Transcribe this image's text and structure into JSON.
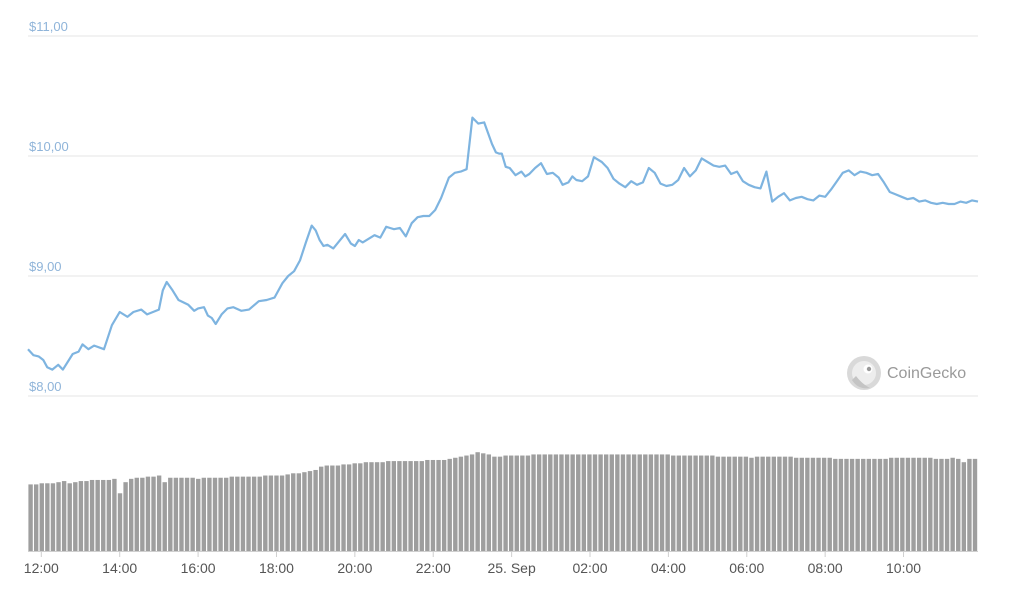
{
  "chart_data": {
    "type": "line",
    "title": "",
    "y_axis": {
      "ticks": [
        {
          "value": 8,
          "label": "$8,00"
        },
        {
          "value": 9,
          "label": "$9,00"
        },
        {
          "value": 10,
          "label": "$10,00"
        },
        {
          "value": 11,
          "label": "$11,00"
        }
      ],
      "range": [
        7.95,
        11.05
      ]
    },
    "x_axis": {
      "ticks": [
        {
          "hour": 12,
          "label": "12:00"
        },
        {
          "hour": 14,
          "label": "14:00"
        },
        {
          "hour": 16,
          "label": "16:00"
        },
        {
          "hour": 18,
          "label": "18:00"
        },
        {
          "hour": 20,
          "label": "20:00"
        },
        {
          "hour": 22,
          "label": "22:00"
        },
        {
          "hour": 24,
          "label": "25. Sep"
        },
        {
          "hour": 26,
          "label": "02:00"
        },
        {
          "hour": 28,
          "label": "04:00"
        },
        {
          "hour": 30,
          "label": "06:00"
        },
        {
          "hour": 32,
          "label": "08:00"
        },
        {
          "hour": 34,
          "label": "10:00"
        }
      ],
      "range": [
        11.66,
        35.9
      ]
    },
    "price_series": {
      "color": "#7eb4e0",
      "hours": [
        11.66,
        11.8,
        11.93,
        12.05,
        12.15,
        12.28,
        12.43,
        12.55,
        12.8,
        12.95,
        13.05,
        13.2,
        13.35,
        13.6,
        13.8,
        14.0,
        14.2,
        14.35,
        14.55,
        14.7,
        14.85,
        15.0,
        15.1,
        15.2,
        15.35,
        15.5,
        15.75,
        15.9,
        16.0,
        16.15,
        16.25,
        16.35,
        16.45,
        16.6,
        16.75,
        16.9,
        17.1,
        17.3,
        17.55,
        17.75,
        17.95,
        18.15,
        18.3,
        18.45,
        18.6,
        18.75,
        18.9,
        19.0,
        19.1,
        19.2,
        19.3,
        19.45,
        19.6,
        19.75,
        19.9,
        20.0,
        20.1,
        20.2,
        20.35,
        20.5,
        20.65,
        20.8,
        20.9,
        21.0,
        21.15,
        21.3,
        21.45,
        21.6,
        21.75,
        21.9,
        22.05,
        22.2,
        22.4,
        22.55,
        22.7,
        22.85,
        23.0,
        23.15,
        23.3,
        23.5,
        23.6,
        23.68,
        23.75,
        23.85,
        23.95,
        24.1,
        24.25,
        24.35,
        24.45,
        24.6,
        24.75,
        24.9,
        25.05,
        25.2,
        25.3,
        25.45,
        25.55,
        25.65,
        25.8,
        25.95,
        26.1,
        26.3,
        26.45,
        26.6,
        26.75,
        26.9,
        27.05,
        27.2,
        27.35,
        27.5,
        27.65,
        27.8,
        27.95,
        28.1,
        28.25,
        28.4,
        28.55,
        28.7,
        28.85,
        29.0,
        29.15,
        29.3,
        29.45,
        29.6,
        29.75,
        29.9,
        30.05,
        30.2,
        30.35,
        30.5,
        30.65,
        30.8,
        30.95,
        31.1,
        31.25,
        31.4,
        31.55,
        31.7,
        31.85,
        32.0,
        32.15,
        32.3,
        32.45,
        32.6,
        32.75,
        32.9,
        33.05,
        33.2,
        33.35,
        33.5,
        33.65,
        33.8,
        33.95,
        34.1,
        34.25,
        34.4,
        34.55,
        34.7,
        34.85,
        35.0,
        35.15,
        35.3,
        35.45,
        35.6,
        35.75,
        35.9
      ],
      "prices": [
        8.39,
        8.34,
        8.33,
        8.3,
        8.24,
        8.22,
        8.26,
        8.22,
        8.35,
        8.37,
        8.43,
        8.39,
        8.42,
        8.39,
        8.59,
        8.7,
        8.66,
        8.7,
        8.72,
        8.68,
        8.7,
        8.72,
        8.88,
        8.95,
        8.88,
        8.8,
        8.76,
        8.71,
        8.73,
        8.74,
        8.67,
        8.65,
        8.6,
        8.68,
        8.73,
        8.74,
        8.71,
        8.72,
        8.79,
        8.8,
        8.82,
        8.94,
        9.0,
        9.04,
        9.13,
        9.28,
        9.42,
        9.38,
        9.3,
        9.25,
        9.26,
        9.23,
        9.29,
        9.35,
        9.27,
        9.25,
        9.3,
        9.28,
        9.31,
        9.34,
        9.32,
        9.41,
        9.4,
        9.39,
        9.4,
        9.33,
        9.44,
        9.49,
        9.5,
        9.5,
        9.55,
        9.65,
        9.82,
        9.86,
        9.87,
        9.89,
        10.32,
        10.27,
        10.28,
        10.1,
        10.03,
        10.02,
        10.02,
        9.91,
        9.9,
        9.84,
        9.87,
        9.83,
        9.85,
        9.9,
        9.94,
        9.85,
        9.86,
        9.82,
        9.76,
        9.78,
        9.83,
        9.8,
        9.79,
        9.83,
        9.99,
        9.95,
        9.9,
        9.81,
        9.77,
        9.74,
        9.79,
        9.76,
        9.78,
        9.9,
        9.86,
        9.77,
        9.75,
        9.76,
        9.8,
        9.9,
        9.83,
        9.88,
        9.98,
        9.95,
        9.92,
        9.91,
        9.92,
        9.85,
        9.87,
        9.79,
        9.76,
        9.74,
        9.73,
        9.87,
        9.62,
        9.66,
        9.69,
        9.63,
        9.65,
        9.66,
        9.64,
        9.63,
        9.67,
        9.66,
        9.72,
        9.79,
        9.86,
        9.88,
        9.84,
        9.87,
        9.86,
        9.84,
        9.85,
        9.78,
        9.7,
        9.68,
        9.66,
        9.64,
        9.65,
        9.62,
        9.63,
        9.61,
        9.6,
        9.61,
        9.6,
        9.6,
        9.62,
        9.61,
        9.63,
        9.62
      ],
      "note_unused": ""
    },
    "volume_series": {
      "color": "#9e9e9e",
      "levels": [
        0.6,
        0.6,
        0.61,
        0.61,
        0.61,
        0.62,
        0.63,
        0.61,
        0.62,
        0.63,
        0.63,
        0.64,
        0.64,
        0.64,
        0.64,
        0.65,
        0.52,
        0.62,
        0.65,
        0.66,
        0.66,
        0.67,
        0.67,
        0.68,
        0.62,
        0.66,
        0.66,
        0.66,
        0.66,
        0.66,
        0.65,
        0.66,
        0.66,
        0.66,
        0.66,
        0.66,
        0.67,
        0.67,
        0.67,
        0.67,
        0.67,
        0.67,
        0.68,
        0.68,
        0.68,
        0.68,
        0.69,
        0.7,
        0.7,
        0.71,
        0.72,
        0.73,
        0.76,
        0.77,
        0.77,
        0.77,
        0.78,
        0.78,
        0.79,
        0.79,
        0.8,
        0.8,
        0.8,
        0.8,
        0.81,
        0.81,
        0.81,
        0.81,
        0.81,
        0.81,
        0.81,
        0.82,
        0.82,
        0.82,
        0.82,
        0.83,
        0.84,
        0.85,
        0.86,
        0.87,
        0.89,
        0.88,
        0.87,
        0.85,
        0.85,
        0.86,
        0.86,
        0.86,
        0.86,
        0.86,
        0.87,
        0.87,
        0.87,
        0.87,
        0.87,
        0.87,
        0.87,
        0.87,
        0.87,
        0.87,
        0.87,
        0.87,
        0.87,
        0.87,
        0.87,
        0.87,
        0.87,
        0.87,
        0.87,
        0.87,
        0.87,
        0.87,
        0.87,
        0.87,
        0.87,
        0.86,
        0.86,
        0.86,
        0.86,
        0.86,
        0.86,
        0.86,
        0.86,
        0.85,
        0.85,
        0.85,
        0.85,
        0.85,
        0.85,
        0.84,
        0.85,
        0.85,
        0.85,
        0.85,
        0.85,
        0.85,
        0.85,
        0.84,
        0.84,
        0.84,
        0.84,
        0.84,
        0.84,
        0.84,
        0.83,
        0.83,
        0.83,
        0.83,
        0.83,
        0.83,
        0.83,
        0.83,
        0.83,
        0.83,
        0.84,
        0.84,
        0.84,
        0.84,
        0.84,
        0.84,
        0.84,
        0.84,
        0.83,
        0.83,
        0.83,
        0.84,
        0.83,
        0.8,
        0.83,
        0.83
      ]
    }
  },
  "watermark": {
    "text": "CoinGecko",
    "icon": "gecko-logo-icon"
  }
}
